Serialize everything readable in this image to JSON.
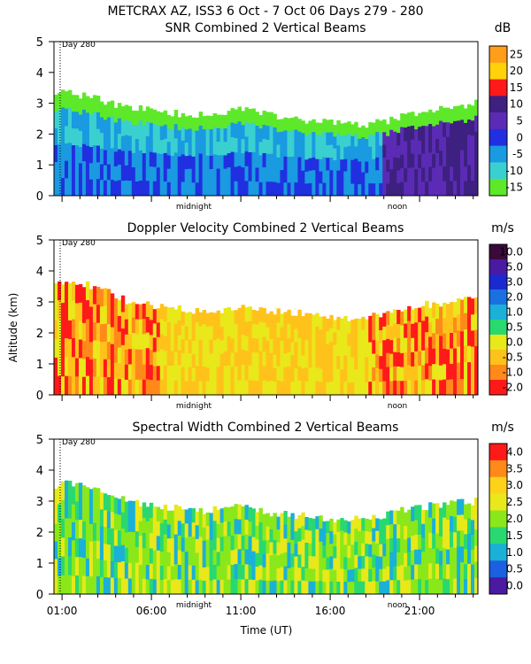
{
  "header": "METCRAX AZ, ISS3    6 Oct -  7 Oct 06 Days 279 - 280",
  "y_label": "Altitude (km)",
  "x_label": "Time (UT)",
  "day_marker": "Day 280",
  "midnight_label": "midnight",
  "noon_label": "noon",
  "time_ticks": [
    "01:00",
    "06:00",
    "11:00",
    "16:00",
    "21:00"
  ],
  "alt_ticks": [
    "0",
    "1",
    "2",
    "3",
    "4",
    "5"
  ],
  "chart_data": [
    {
      "type": "heatmap",
      "title": "SNR Combined 2 Vertical Beams",
      "unit": "dB",
      "ylim": [
        0,
        5
      ],
      "colorbar": {
        "labels": [
          "25",
          "20",
          "15",
          "10",
          "5",
          "0",
          "-5",
          "-10",
          "-15"
        ],
        "colors": [
          "#ff9e1a",
          "#ffd20a",
          "#ff1a1a",
          "#3d2080",
          "#5b2bb5",
          "#2030e0",
          "#1a9ae0",
          "#3ad0d0",
          "#5ee82a"
        ]
      },
      "top_profile_km": [
        3.4,
        3.3,
        3.2,
        3.0,
        2.9,
        2.8,
        2.7,
        2.65,
        2.6,
        2.65,
        2.8,
        2.7,
        2.6,
        2.5,
        2.45,
        2.4,
        2.3,
        2.3,
        2.4,
        2.6,
        2.7,
        2.8,
        2.9,
        3.0
      ]
    },
    {
      "type": "heatmap",
      "title": "Doppler Velocity Combined 2 Vertical Beams",
      "unit": "m/s",
      "ylim": [
        0,
        5
      ],
      "colorbar": {
        "labels": [
          "10.0",
          "5.0",
          "3.0",
          "2.0",
          "1.0",
          "0.5",
          "0.0",
          "-0.5",
          "-1.0",
          "-2.0"
        ],
        "colors": [
          "#3a0a3a",
          "#4a1aa0",
          "#1a2ad0",
          "#1a70e0",
          "#1ab0d8",
          "#2ad870",
          "#e8e81a",
          "#ffc21a",
          "#ff8a1a",
          "#ff1a1a"
        ]
      },
      "top_profile_km": [
        3.6,
        3.7,
        3.5,
        3.3,
        3.0,
        2.9,
        2.8,
        2.75,
        2.7,
        2.75,
        2.8,
        2.75,
        2.7,
        2.65,
        2.6,
        2.5,
        2.45,
        2.5,
        2.6,
        2.8,
        2.9,
        2.95,
        3.0,
        3.1
      ]
    },
    {
      "type": "heatmap",
      "title": "Spectral Width Combined 2 Vertical Beams",
      "unit": "m/s",
      "ylim": [
        0,
        5
      ],
      "colorbar": {
        "labels": [
          "4.0",
          "3.5",
          "3.0",
          "2.5",
          "2.0",
          "1.5",
          "1.0",
          "0.5",
          "0.0"
        ],
        "colors": [
          "#ff1a1a",
          "#ff8a1a",
          "#ffd21a",
          "#e8e81a",
          "#8ae81a",
          "#2ad870",
          "#1ab0d8",
          "#1a60e0",
          "#4a1aa0"
        ]
      },
      "top_profile_km": [
        3.5,
        3.6,
        3.4,
        3.2,
        3.0,
        2.9,
        2.8,
        2.75,
        2.7,
        2.75,
        2.8,
        2.7,
        2.6,
        2.55,
        2.5,
        2.45,
        2.4,
        2.45,
        2.55,
        2.7,
        2.8,
        2.9,
        2.95,
        3.0
      ]
    }
  ]
}
